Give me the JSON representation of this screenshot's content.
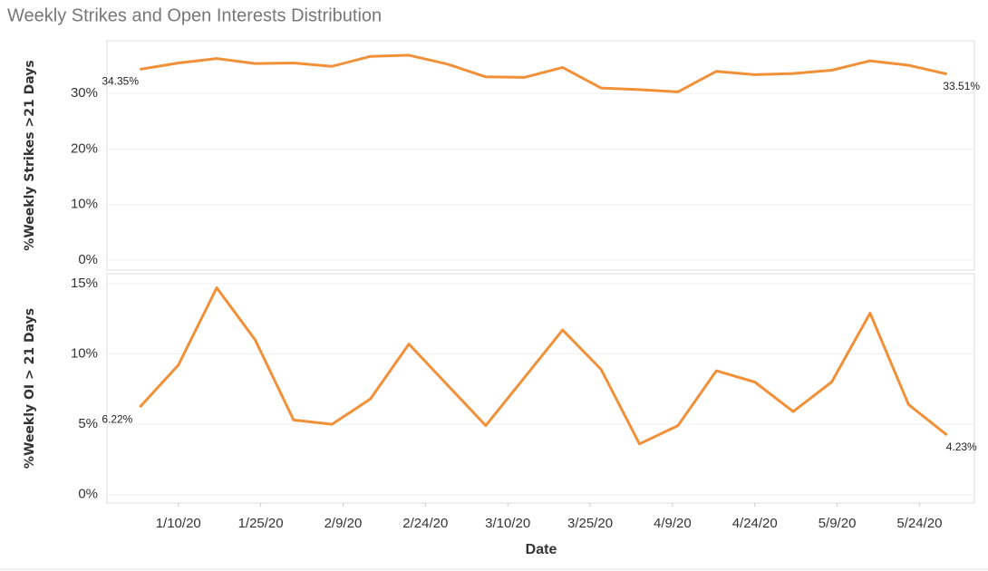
{
  "chart_data": {
    "type": "line",
    "title": "Weekly Strikes and Open Interests Distribution",
    "xlabel": "Date",
    "x": [
      "2020-01-03",
      "2020-01-10",
      "2020-01-17",
      "2020-01-24",
      "2020-01-31",
      "2020-02-07",
      "2020-02-14",
      "2020-02-21",
      "2020-02-28",
      "2020-03-06",
      "2020-03-13",
      "2020-03-20",
      "2020-03-27",
      "2020-04-03",
      "2020-04-10",
      "2020-04-17",
      "2020-04-24",
      "2020-05-01",
      "2020-05-08",
      "2020-05-15",
      "2020-05-22",
      "2020-05-29"
    ],
    "xlim": [
      "2019-12-28",
      "2020-06-03"
    ],
    "xticks": [
      {
        "value": "2020-01-10",
        "label": "1/10/20"
      },
      {
        "value": "2020-01-25",
        "label": "1/25/20"
      },
      {
        "value": "2020-02-09",
        "label": "2/9/20"
      },
      {
        "value": "2020-02-24",
        "label": "2/24/20"
      },
      {
        "value": "2020-03-10",
        "label": "3/10/20"
      },
      {
        "value": "2020-03-25",
        "label": "3/25/20"
      },
      {
        "value": "2020-04-09",
        "label": "4/9/20"
      },
      {
        "value": "2020-04-24",
        "label": "4/24/20"
      },
      {
        "value": "2020-05-09",
        "label": "5/9/20"
      },
      {
        "value": "2020-05-24",
        "label": "5/24/20"
      }
    ],
    "grid": true,
    "panels": [
      {
        "ylabel": "%Weekly Strikes >21 Days",
        "ylim": [
          -1.8,
          39.5
        ],
        "yticks": [
          {
            "value": 0,
            "label": "0%"
          },
          {
            "value": 10,
            "label": "10%"
          },
          {
            "value": 20,
            "label": "20%"
          },
          {
            "value": 30,
            "label": "30%"
          }
        ],
        "series": [
          {
            "color": "#f0913a",
            "values": [
              34.35,
              35.5,
              36.3,
              35.4,
              35.5,
              34.9,
              36.7,
              36.9,
              35.3,
              33.0,
              32.9,
              34.7,
              31.0,
              30.7,
              30.3,
              34.0,
              33.4,
              33.6,
              34.2,
              35.9,
              35.1,
              33.51
            ],
            "value_labels": [
              "34.35%",
              null,
              null,
              null,
              null,
              null,
              null,
              null,
              null,
              null,
              null,
              null,
              null,
              null,
              null,
              null,
              null,
              null,
              null,
              null,
              null,
              "33.51%"
            ]
          }
        ]
      },
      {
        "ylabel": "%Weekly OI > 21 Days",
        "ylim": [
          -0.6,
          15.7
        ],
        "yticks": [
          {
            "value": 0,
            "label": "0%"
          },
          {
            "value": 5,
            "label": "5%"
          },
          {
            "value": 10,
            "label": "10%"
          },
          {
            "value": 15,
            "label": "15%"
          }
        ],
        "series": [
          {
            "color": "#f0913a",
            "values": [
              6.22,
              9.2,
              14.7,
              11.0,
              5.3,
              5.0,
              6.8,
              10.7,
              7.8,
              4.9,
              8.3,
              11.7,
              8.9,
              3.6,
              4.9,
              8.8,
              8.0,
              5.9,
              8.0,
              12.9,
              6.4,
              4.23
            ],
            "value_labels": [
              "6.22%",
              null,
              null,
              null,
              null,
              null,
              null,
              null,
              null,
              null,
              null,
              null,
              null,
              null,
              null,
              null,
              null,
              null,
              null,
              null,
              null,
              "4.23%"
            ]
          }
        ]
      }
    ]
  }
}
